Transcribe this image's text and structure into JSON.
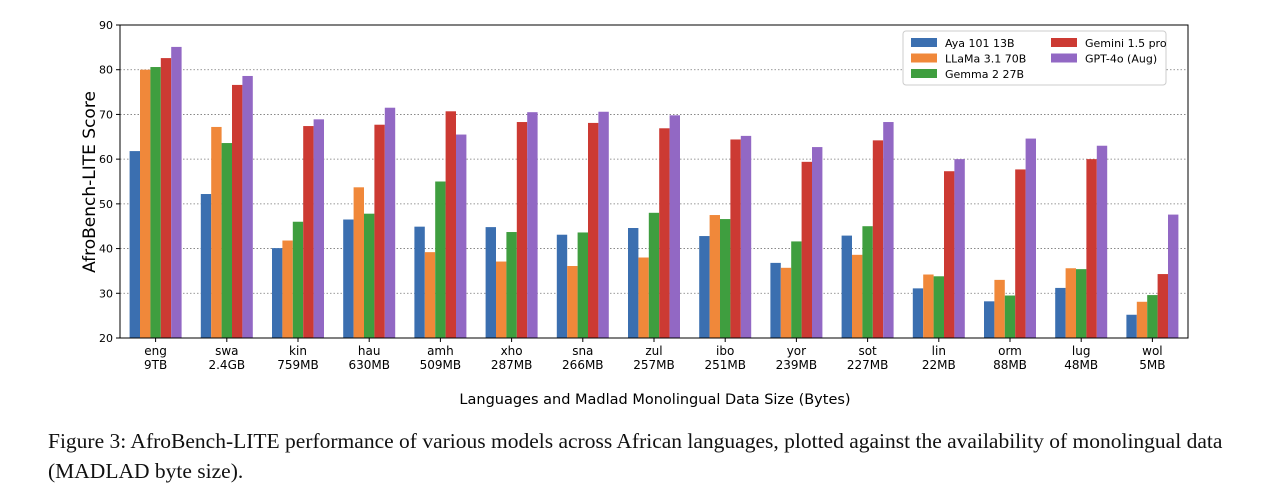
{
  "chart_data": {
    "type": "bar",
    "ylabel": "AfroBench-LITE Score",
    "xlabel": "Languages and Madlad Monolingual Data Size (Bytes)",
    "ylim": [
      20,
      90
    ],
    "yticks": [
      20,
      30,
      40,
      50,
      60,
      70,
      80,
      90
    ],
    "grid": "y-dotted",
    "legend_position": "top-right",
    "categories": [
      "eng",
      "swa",
      "kin",
      "hau",
      "amh",
      "xho",
      "sna",
      "zul",
      "ibo",
      "yor",
      "sot",
      "lin",
      "orm",
      "lug",
      "wol"
    ],
    "data_sizes": [
      "9TB",
      "2.4GB",
      "759MB",
      "630MB",
      "509MB",
      "287MB",
      "266MB",
      "257MB",
      "251MB",
      "239MB",
      "227MB",
      "22MB",
      "88MB",
      "48MB",
      "5MB"
    ],
    "series": [
      {
        "name": "Aya 101 13B",
        "color": "#3b6fb0",
        "values": [
          61.8,
          52.2,
          40.1,
          46.5,
          44.9,
          44.8,
          43.1,
          44.6,
          42.8,
          36.8,
          42.9,
          31.1,
          28.2,
          31.2,
          25.2
        ]
      },
      {
        "name": "LLaMa 3.1 70B",
        "color": "#f0883a",
        "values": [
          80.0,
          67.2,
          41.8,
          53.7,
          39.2,
          37.1,
          36.1,
          38.0,
          47.5,
          35.7,
          38.6,
          34.2,
          33.0,
          35.6,
          28.1
        ]
      },
      {
        "name": "Gemma 2 27B",
        "color": "#3f9e3f",
        "values": [
          80.6,
          63.6,
          46.0,
          47.8,
          55.0,
          43.7,
          43.6,
          48.0,
          46.6,
          41.6,
          45.0,
          33.8,
          29.5,
          35.4,
          29.6
        ]
      },
      {
        "name": "Gemini 1.5 pro",
        "color": "#cc3a33",
        "values": [
          82.6,
          76.6,
          67.4,
          67.7,
          70.7,
          68.3,
          68.1,
          66.9,
          64.4,
          59.4,
          64.2,
          57.3,
          57.7,
          60.0,
          34.3
        ]
      },
      {
        "name": "GPT-4o (Aug)",
        "color": "#9268c4",
        "values": [
          85.1,
          78.6,
          68.9,
          71.5,
          65.5,
          70.5,
          70.6,
          69.8,
          65.2,
          62.7,
          68.3,
          60.0,
          64.6,
          63.0,
          47.6
        ]
      }
    ]
  },
  "caption": "Figure 3: AfroBench-LITE performance of various models across African languages, plotted against the availability of monolingual data (MADLAD byte size)."
}
